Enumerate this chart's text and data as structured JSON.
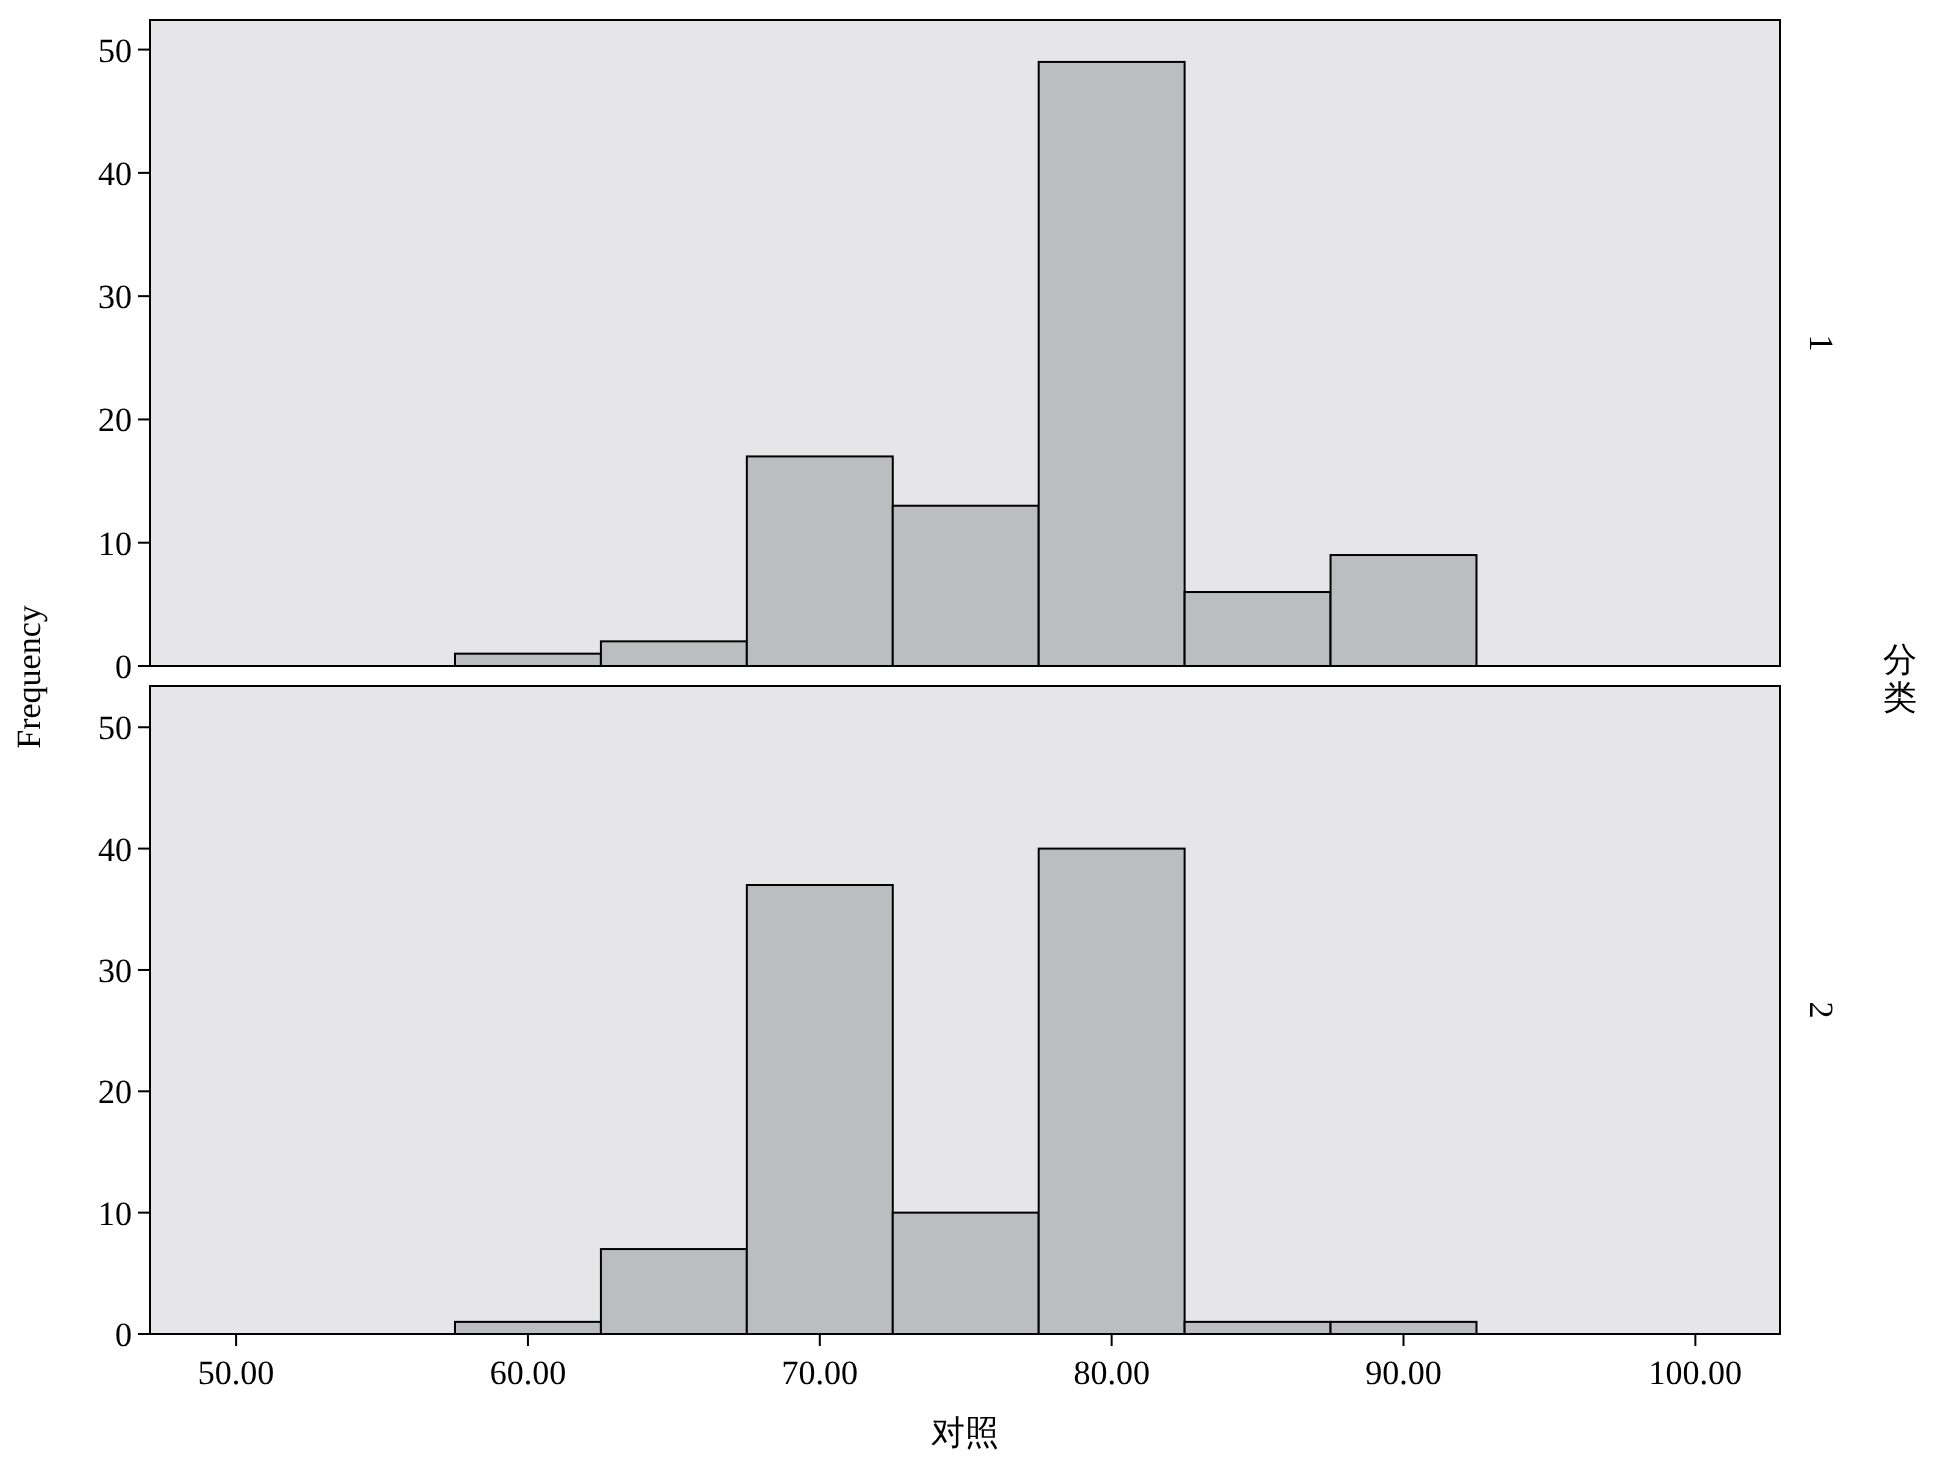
{
  "chart_data": [
    {
      "type": "histogram",
      "ylabel": "Frequency",
      "y2label": "分类",
      "annotations": [
        "1"
      ],
      "bins": [
        57.5,
        62.5,
        67.5,
        72.5,
        77.5,
        82.5,
        87.5,
        92.5
      ],
      "values": [
        1,
        2,
        17,
        13,
        49,
        6,
        9
      ],
      "color": "#bcbdc0",
      "xlim": [
        47.05,
        102.9
      ],
      "ylim": [
        0,
        52.4
      ],
      "yticks": [
        0,
        10,
        20,
        30,
        40,
        50
      ],
      "tick_labels": "y",
      "grid": false
    },
    {
      "type": "histogram",
      "xlabel": "对照",
      "annotations": [
        "2"
      ],
      "bins": [
        57.5,
        62.5,
        67.5,
        72.5,
        77.5,
        82.5,
        87.5,
        92.5
      ],
      "values": [
        1,
        7,
        37,
        10,
        40,
        1,
        1
      ],
      "color": "#bcbdc0",
      "xlim": [
        47.05,
        102.9
      ],
      "ylim": [
        0,
        53.4
      ],
      "xticks": [
        {
          "value": 50,
          "label": "50.00"
        },
        {
          "value": 60,
          "label": "60.00"
        },
        {
          "value": 70,
          "label": "70.00"
        },
        {
          "value": 80,
          "label": "80.00"
        },
        {
          "value": 90,
          "label": "90.00"
        },
        {
          "value": 100,
          "label": "100.00"
        }
      ],
      "yticks": [
        0,
        10,
        20,
        30,
        40,
        50
      ],
      "grid": false
    }
  ]
}
